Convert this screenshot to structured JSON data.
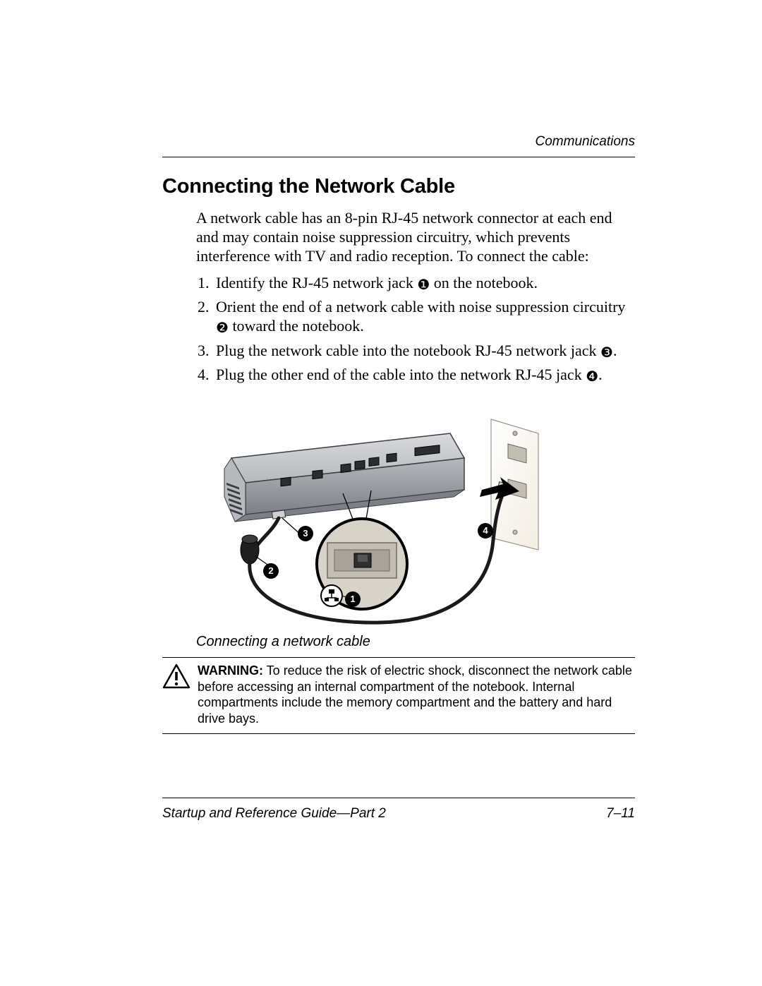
{
  "header": {
    "running_title": "Communications"
  },
  "section": {
    "title": "Connecting the Network Cable",
    "intro": "A network cable has an 8-pin RJ-45 network connector at each end and may contain noise suppression circuitry, which prevents interference with TV and radio reception. To connect the cable:",
    "steps": [
      {
        "pre": "Identify the RJ-45 network jack ",
        "callout": "1",
        "post": " on the notebook."
      },
      {
        "pre": "Orient the end of a network cable with noise suppression circuitry ",
        "callout": "2",
        "post": " toward the notebook."
      },
      {
        "pre": "Plug the network cable into the notebook RJ-45 network jack ",
        "callout": "3",
        "post": "."
      },
      {
        "pre": "Plug the other end of the cable into the network RJ-45 jack ",
        "callout": "4",
        "post": "."
      }
    ]
  },
  "figure": {
    "caption": "Connecting a network cable",
    "callouts": [
      "1",
      "2",
      "3",
      "4"
    ],
    "colors": {
      "laptop_light": "#d8dadd",
      "laptop_mid": "#b6b9bd",
      "laptop_dark": "#7c8086",
      "laptop_edge": "#3b3e42",
      "wall_plate": "#f3ede2",
      "wall_plate_edge": "#9c968a",
      "cable": "#1a1a1a",
      "magnifier_ring": "#000000",
      "magnifier_bg": "#d8d3c9",
      "port_light": "#c3beb4",
      "port_dark": "#6f6a60",
      "callout_bg": "#000000",
      "callout_fg": "#ffffff",
      "arrow": "#000000"
    }
  },
  "warning": {
    "label": "WARNING:",
    "text": " To reduce the risk of electric shock, disconnect the network cable before accessing an internal compartment of the notebook. Internal compartments include the memory compartment and the battery and hard drive bays."
  },
  "footer": {
    "left": "Startup and Reference Guide—Part 2",
    "right": "7–11"
  }
}
